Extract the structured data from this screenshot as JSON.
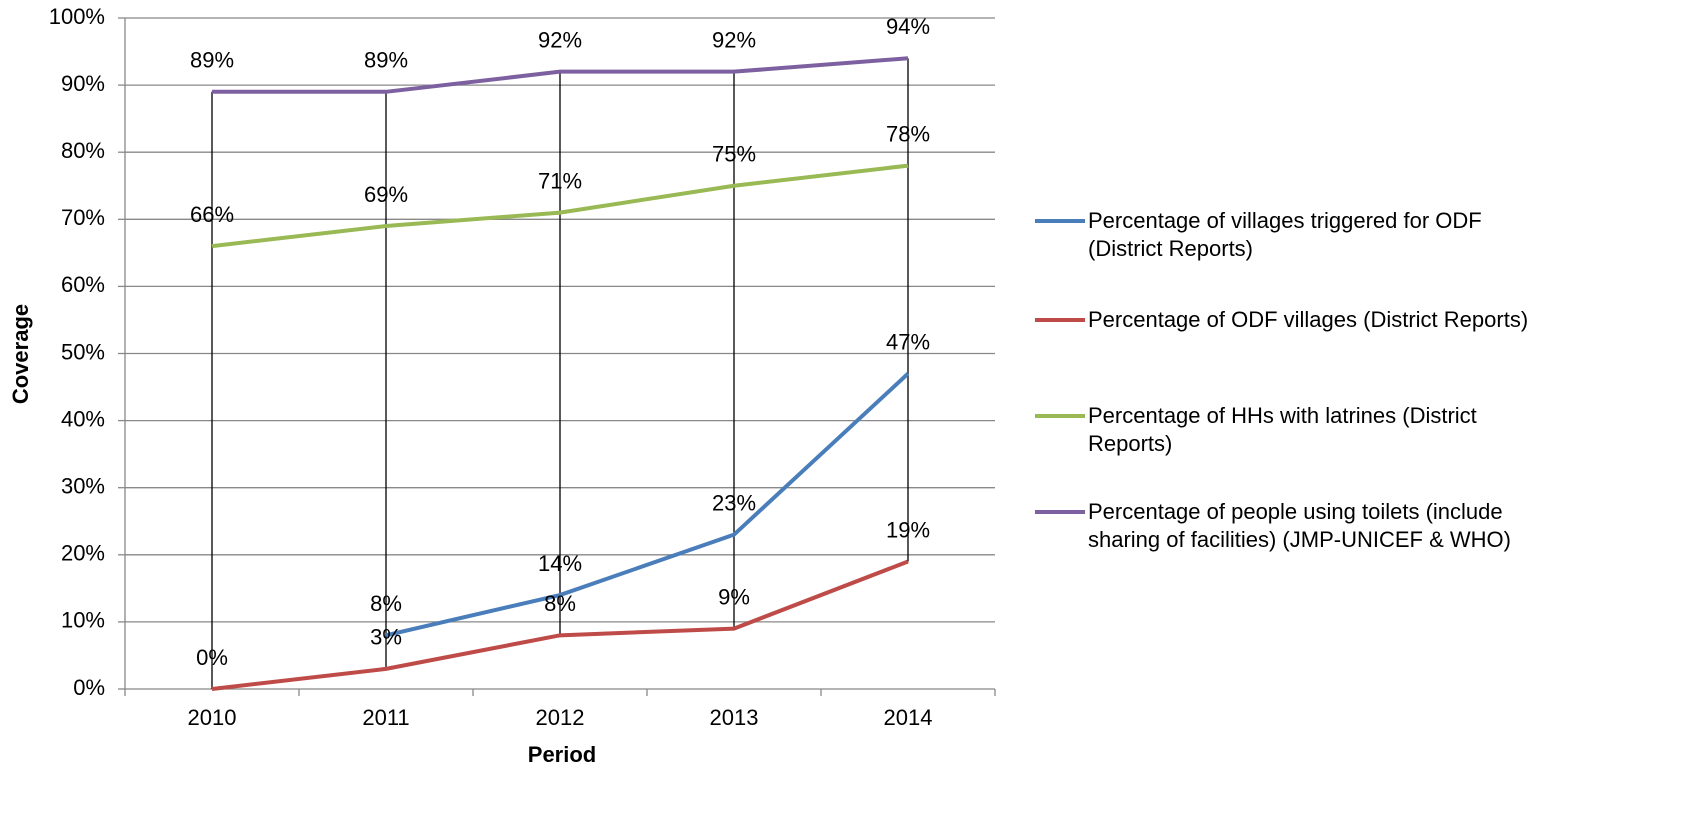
{
  "chart_data": {
    "type": "line",
    "categories": [
      "2010",
      "2011",
      "2012",
      "2013",
      "2014"
    ],
    "series": [
      {
        "name": "Percentage of villages triggered for ODF (District Reports)",
        "color": "#4a7ebb",
        "values": [
          null,
          8,
          14,
          23,
          47
        ],
        "value_labels": [
          null,
          "8%",
          "14%",
          "23%",
          "47%"
        ]
      },
      {
        "name": "Percentage of ODF villages (District Reports)",
        "color": "#be4b48",
        "values": [
          0,
          3,
          8,
          9,
          19
        ],
        "value_labels": [
          "0%",
          "3%",
          "8%",
          "9%",
          "19%"
        ]
      },
      {
        "name": "Percentage of HHs with latrines (District Reports)",
        "color": "#98b954",
        "values": [
          66,
          69,
          71,
          75,
          78
        ],
        "value_labels": [
          "66%",
          "69%",
          "71%",
          "75%",
          "78%"
        ]
      },
      {
        "name": "Percentage of people using toilets (include sharing of facilities) (JMP-UNICEF & WHO)",
        "color": "#7d60a0",
        "values": [
          89,
          89,
          92,
          92,
          94
        ],
        "value_labels": [
          "89%",
          "89%",
          "92%",
          "92%",
          "94%"
        ]
      }
    ],
    "ylim": [
      0,
      100
    ],
    "yticks": [
      {
        "value": 0,
        "label": "0%"
      },
      {
        "value": 10,
        "label": "10%"
      },
      {
        "value": 20,
        "label": "20%"
      },
      {
        "value": 30,
        "label": "30%"
      },
      {
        "value": 40,
        "label": "40%"
      },
      {
        "value": 50,
        "label": "50%"
      },
      {
        "value": 60,
        "label": "60%"
      },
      {
        "value": 70,
        "label": "70%"
      },
      {
        "value": 80,
        "label": "80%"
      },
      {
        "value": 90,
        "label": "90%"
      },
      {
        "value": 100,
        "label": "100%"
      }
    ],
    "xlabel": "Period",
    "ylabel": "Coverage",
    "grid": true,
    "drop_lines": true,
    "legend": "right"
  }
}
